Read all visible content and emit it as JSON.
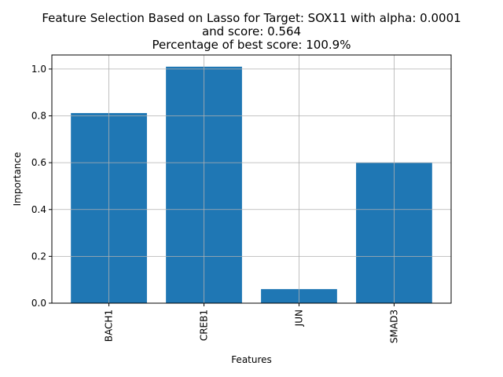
{
  "chart_data": {
    "type": "bar",
    "title_lines": [
      "Feature Selection Based on Lasso for Target: SOX11 with alpha: 0.0001",
      "and score: 0.564",
      "Percentage of best score: 100.9%"
    ],
    "xlabel": "Features",
    "ylabel": "Importance",
    "categories": [
      "BACH1",
      "CREB1",
      "JUN",
      "SMAD3"
    ],
    "values": [
      0.812,
      1.01,
      0.06,
      0.6
    ],
    "ylim": [
      0,
      1.06
    ],
    "yticks": [
      0.0,
      0.2,
      0.4,
      0.6,
      0.8,
      1.0
    ],
    "ytick_labels": [
      "0.0",
      "0.2",
      "0.4",
      "0.6",
      "0.8",
      "1.0"
    ],
    "grid": true,
    "legend": "none",
    "bar_color": "#1f77b4",
    "grid_color": "#b0b0b0"
  }
}
